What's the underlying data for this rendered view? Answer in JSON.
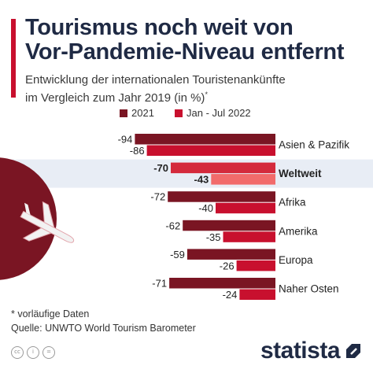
{
  "header": {
    "title_line1": "Tourismus noch weit von",
    "title_line2": "Vor-Pandemie-Niveau entfernt",
    "subtitle_line1": "Entwicklung der internationalen Touristenankünfte",
    "subtitle_line2": "im Vergleich zum Jahr 2019 (in %)",
    "subtitle_mark": "*"
  },
  "chart_data": {
    "type": "bar",
    "orientation": "horizontal",
    "categories": [
      "Asien & Pazifik",
      "Weltweit",
      "Afrika",
      "Amerika",
      "Europa",
      "Naher Osten"
    ],
    "highlighted_category": "Weltweit",
    "series": [
      {
        "name": "2021",
        "values": [
          -94,
          -70,
          -72,
          -62,
          -59,
          -71
        ]
      },
      {
        "name": "Jan - Jul 2022",
        "values": [
          -86,
          -43,
          -40,
          -35,
          -26,
          -24
        ]
      }
    ],
    "xlim": [
      -100,
      0
    ],
    "legend_position": "top",
    "grid": false
  },
  "colors": {
    "series_2021": "#7a1523",
    "series_2022": "#c8102e",
    "highlight_2021": "#d42a3c",
    "highlight_2022": "#f26b6b",
    "highlight_band": "#e8edf5",
    "title": "#1f2a44",
    "accent": "#c8102e",
    "decoration_circle": "#7a1523"
  },
  "footer": {
    "note": "* vorläufige Daten",
    "source": "Quelle: UNWTO World Tourism Barometer",
    "logo": "statista"
  },
  "icons": [
    "cc-icon",
    "by-icon",
    "nd-icon",
    "airplane-icon",
    "statista-logo-icon"
  ]
}
